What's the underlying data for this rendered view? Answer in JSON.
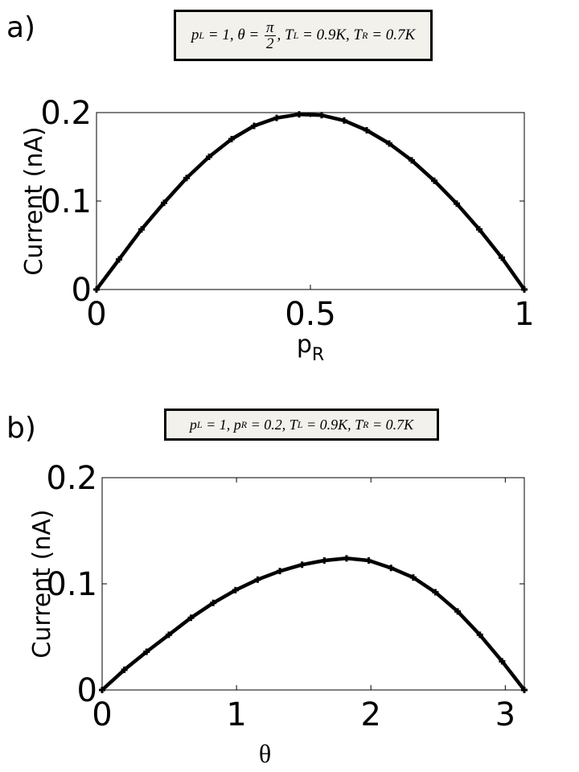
{
  "panels": [
    {
      "label": "a)",
      "params": "p_L = 1, θ = π/2, T_L = 0.9K, T_R = 0.7K",
      "param_parts": [
        "p",
        "L",
        " = 1, θ = ",
        "π",
        "2",
        ", T",
        "L",
        " = 0.9K, T",
        "R",
        " = 0.7K"
      ]
    },
    {
      "label": "b)",
      "params": "p_L = 1, p_R = 0.2, T_L = 0.9K, T_R = 0.7K",
      "param_parts": [
        "p",
        "L",
        " = 1, p",
        "R",
        " = 0.2, T",
        "L",
        " = 0.9K, T",
        "R",
        " = 0.7K"
      ]
    }
  ],
  "chart_data": [
    {
      "type": "line",
      "title": "",
      "xlabel": "p_R",
      "xlabel_main": "p",
      "xlabel_sub": "R",
      "ylabel": "Current (nA)",
      "xlim": [
        0,
        1
      ],
      "ylim": [
        0,
        0.2
      ],
      "x_ticks": [
        0,
        0.5,
        1
      ],
      "x_tick_labels": [
        "0",
        "0.5",
        "1"
      ],
      "y_ticks": [
        0,
        0.1,
        0.2
      ],
      "y_tick_labels": [
        "0",
        "0.1",
        "0.2"
      ],
      "grid": false,
      "marker": "plus",
      "line_color": "#000000",
      "series": [
        {
          "x": [
            0,
            0.0526,
            0.1053,
            0.1579,
            0.2105,
            0.2632,
            0.3158,
            0.3684,
            0.4211,
            0.4737,
            0.5263,
            0.5789,
            0.6316,
            0.6842,
            0.7368,
            0.7895,
            0.8421,
            0.8947,
            0.9474,
            1
          ],
          "values": [
            0,
            0.034,
            0.068,
            0.098,
            0.126,
            0.15,
            0.17,
            0.185,
            0.194,
            0.198,
            0.197,
            0.191,
            0.18,
            0.165,
            0.146,
            0.123,
            0.097,
            0.068,
            0.036,
            0
          ]
        }
      ]
    },
    {
      "type": "line",
      "title": "",
      "xlabel": "θ",
      "ylabel": "Current (nA)",
      "xlim": [
        0,
        3.1416
      ],
      "ylim": [
        0,
        0.2
      ],
      "x_ticks": [
        0,
        1,
        2,
        3
      ],
      "x_tick_labels": [
        "0",
        "1",
        "2",
        "3"
      ],
      "y_ticks": [
        0,
        0.1,
        0.2
      ],
      "y_tick_labels": [
        "0",
        "0.1",
        "0.2"
      ],
      "grid": false,
      "marker": "plus",
      "line_color": "#000000",
      "series": [
        {
          "x": [
            0,
            0.1653,
            0.3307,
            0.496,
            0.6614,
            0.8267,
            0.9921,
            1.1574,
            1.3228,
            1.4881,
            1.6535,
            1.8188,
            1.9842,
            2.1495,
            2.3149,
            2.4802,
            2.6456,
            2.8109,
            2.9763,
            3.1416
          ],
          "values": [
            0,
            0.019,
            0.036,
            0.052,
            0.068,
            0.082,
            0.094,
            0.104,
            0.112,
            0.118,
            0.122,
            0.124,
            0.122,
            0.115,
            0.106,
            0.092,
            0.074,
            0.052,
            0.027,
            0
          ]
        }
      ]
    }
  ]
}
